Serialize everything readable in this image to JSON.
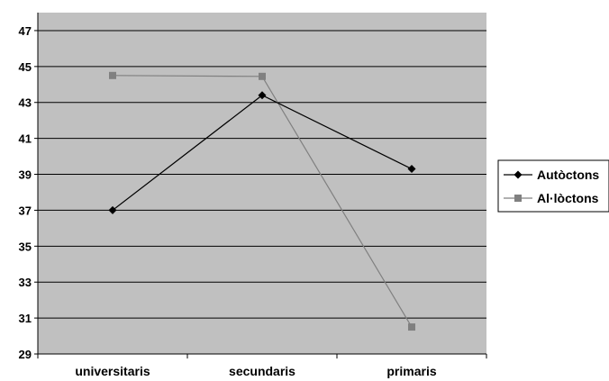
{
  "chart_data": {
    "type": "line",
    "categories": [
      "universitaris",
      "secundaris",
      "primaris"
    ],
    "series": [
      {
        "name": "Autòctons",
        "values": [
          37.0,
          43.4,
          39.3
        ],
        "color": "#000000",
        "marker": "diamond"
      },
      {
        "name": "Al·lòctons",
        "values": [
          44.5,
          44.45,
          30.5
        ],
        "color": "#808080",
        "marker": "square"
      }
    ],
    "ylim": [
      29,
      48
    ],
    "yticks": [
      29,
      31,
      33,
      35,
      37,
      39,
      41,
      43,
      45,
      47
    ],
    "grid": true,
    "plot_background": "#c0c0c0",
    "legend_position": "right"
  }
}
